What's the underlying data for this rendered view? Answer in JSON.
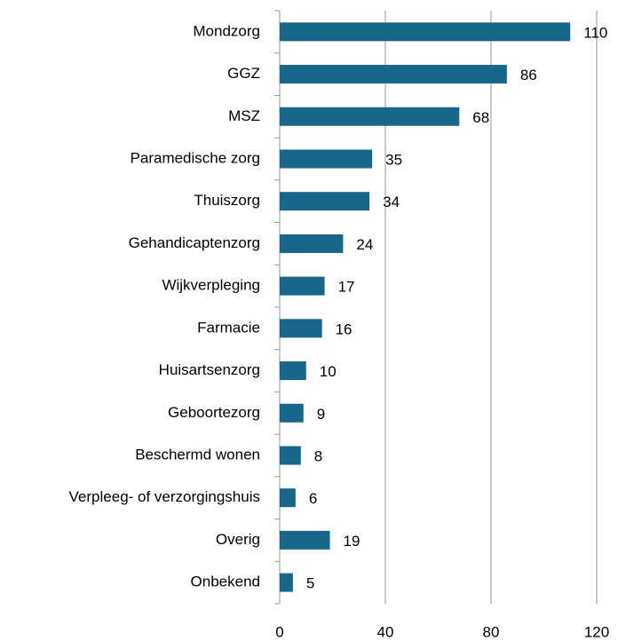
{
  "chart_data": {
    "type": "bar",
    "orientation": "horizontal",
    "categories": [
      "Mondzorg",
      "GGZ",
      "MSZ",
      "Paramedische zorg",
      "Thuiszorg",
      "Gehandicaptenzorg",
      "Wijkverpleging",
      "Farmacie",
      "Huisartsenzorg",
      "Geboortezorg",
      "Beschermd wonen",
      "Verpleeg- of verzorgingshuis",
      "Overig",
      "Onbekend"
    ],
    "values": [
      110,
      86,
      68,
      35,
      34,
      24,
      17,
      16,
      10,
      9,
      8,
      6,
      19,
      5
    ],
    "color": "#17678a",
    "xlim": [
      0,
      120
    ],
    "xticks": [
      0,
      40,
      80,
      120
    ],
    "grid": true
  }
}
